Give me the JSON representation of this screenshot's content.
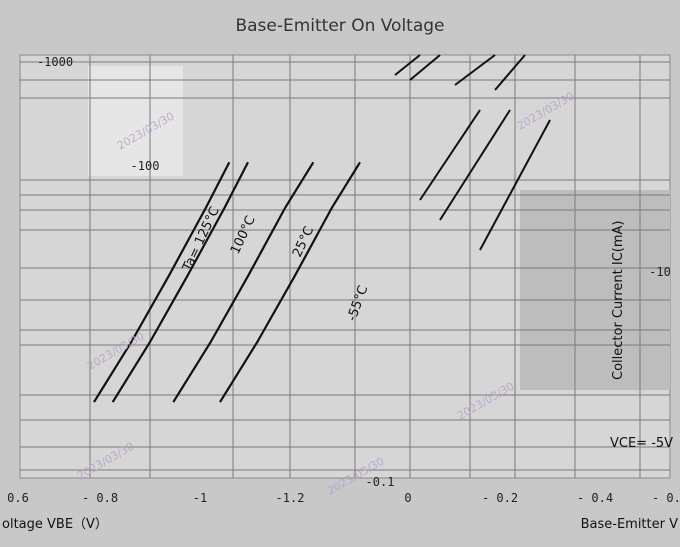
{
  "chart_data": {
    "type": "line",
    "title": "Base-Emitter On Voltage",
    "left_panel": {
      "xlabel": "oltage  VBE（V）",
      "x_ticks": [
        "0.6",
        "- 0.8",
        "-1",
        "-1.2"
      ],
      "y_ticks": [
        "-1000",
        "-100"
      ],
      "series": [
        {
          "name": "Ta= 125°C",
          "x": [
            -0.78,
            -0.86,
            -0.94,
            -1.02,
            -1.07
          ],
          "y": [
            -2,
            -6,
            -20,
            -70,
            -160
          ]
        },
        {
          "name": "100°C",
          "x": [
            -0.82,
            -0.9,
            -0.98,
            -1.06,
            -1.11
          ],
          "y": [
            -2,
            -6,
            -20,
            -70,
            -160
          ]
        },
        {
          "name": "25°C",
          "x": [
            -0.95,
            -1.03,
            -1.11,
            -1.19,
            -1.25
          ],
          "y": [
            -2,
            -6,
            -20,
            -70,
            -160
          ]
        },
        {
          "name": "-55°C",
          "x": [
            -1.05,
            -1.13,
            -1.21,
            -1.29,
            -1.35
          ],
          "y": [
            -2,
            -6,
            -20,
            -70,
            -160
          ]
        }
      ]
    },
    "right_panel": {
      "xlabel": "Base-Emitter V",
      "ylabel": "Collector Current  IC(mA)",
      "x_ticks": [
        "0",
        "- 0.2",
        "- 0.4",
        "- 0.6"
      ],
      "y_ticks": [
        "-10",
        "-0.1"
      ],
      "annotation": "VCE= -5V"
    },
    "watermark": "2023/03/30"
  }
}
